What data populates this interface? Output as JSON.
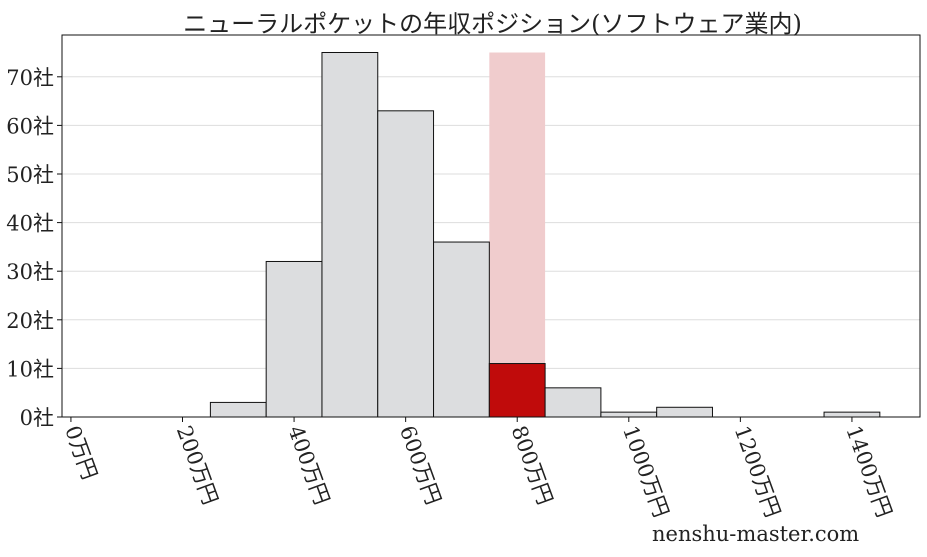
{
  "chart_data": {
    "type": "bar",
    "title": "ニューラルポケットの年収ポジション(ソフトウェア業内)",
    "xlabel": "",
    "ylabel": "",
    "bins": [
      [
        250,
        350
      ],
      [
        350,
        450
      ],
      [
        450,
        550
      ],
      [
        550,
        650
      ],
      [
        650,
        750
      ],
      [
        750,
        850
      ],
      [
        850,
        950
      ],
      [
        950,
        1050
      ],
      [
        1050,
        1150
      ],
      [
        1150,
        1250
      ],
      [
        1250,
        1350
      ],
      [
        1350,
        1450
      ]
    ],
    "values": [
      3,
      32,
      75,
      63,
      36,
      11,
      6,
      1,
      2,
      0,
      0,
      1
    ],
    "highlight_bin_index": 5,
    "highlight_band_value": 75,
    "xlim": [
      -16,
      1522
    ],
    "ylim": [
      0,
      78.6
    ],
    "xticks": [
      0,
      200,
      400,
      600,
      800,
      1000,
      1200,
      1400
    ],
    "xtick_labels": [
      "0万円",
      "200万円",
      "400万円",
      "600万円",
      "800万円",
      "1000万円",
      "1200万円",
      "1400万円"
    ],
    "yticks": [
      0,
      10,
      20,
      30,
      40,
      50,
      60,
      70
    ],
    "ytick_labels": [
      "0社",
      "10社",
      "20社",
      "30社",
      "40社",
      "50社",
      "60社",
      "70社"
    ],
    "grid": "horizontal",
    "colors": {
      "bar": "#dcdddf",
      "highlight": "#c00b0b",
      "band": "#f0cccd",
      "edge": "#111111"
    }
  },
  "watermark": "nenshu-master.com"
}
